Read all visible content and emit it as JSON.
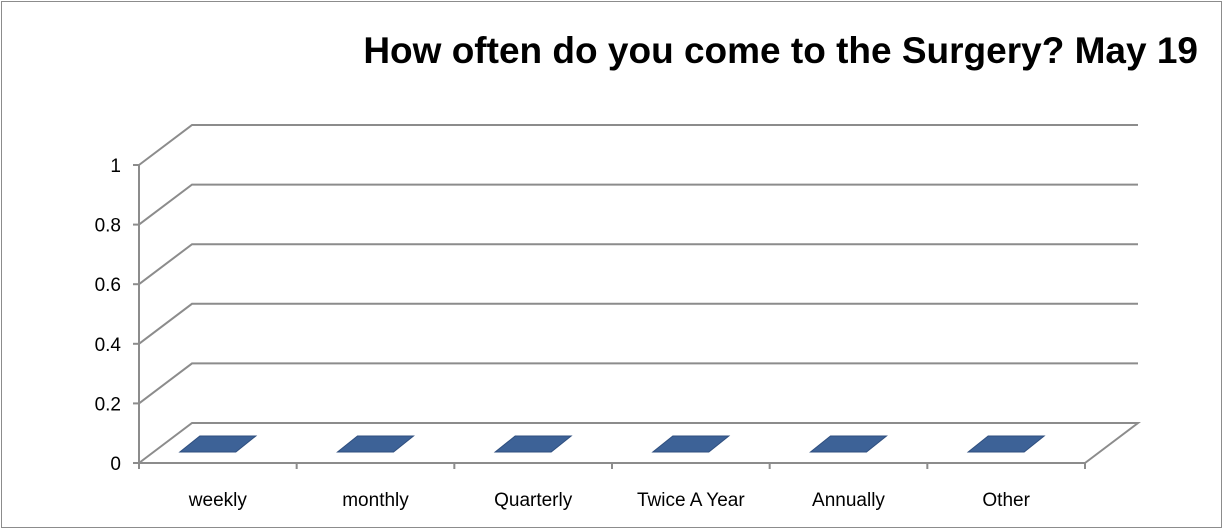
{
  "chart_data": {
    "type": "bar",
    "title": "How often do you come to the Surgery? May 19",
    "categories": [
      "weekly",
      "monthly",
      "Quarterly",
      "Twice A Year",
      "Annually",
      "Other"
    ],
    "values": [
      0,
      0,
      0,
      0,
      0,
      0
    ],
    "yticks": [
      "0",
      "0.2",
      "0.4",
      "0.6",
      "0.8",
      "1"
    ],
    "ytick_values": [
      0,
      0.2,
      0.4,
      0.6,
      0.8,
      1
    ],
    "ylim": [
      0,
      1
    ],
    "xlabel": "",
    "ylabel": "",
    "grid": true,
    "style": "3d",
    "bar_color": "#3d6297",
    "gridline_color": "#8c8c8c"
  }
}
